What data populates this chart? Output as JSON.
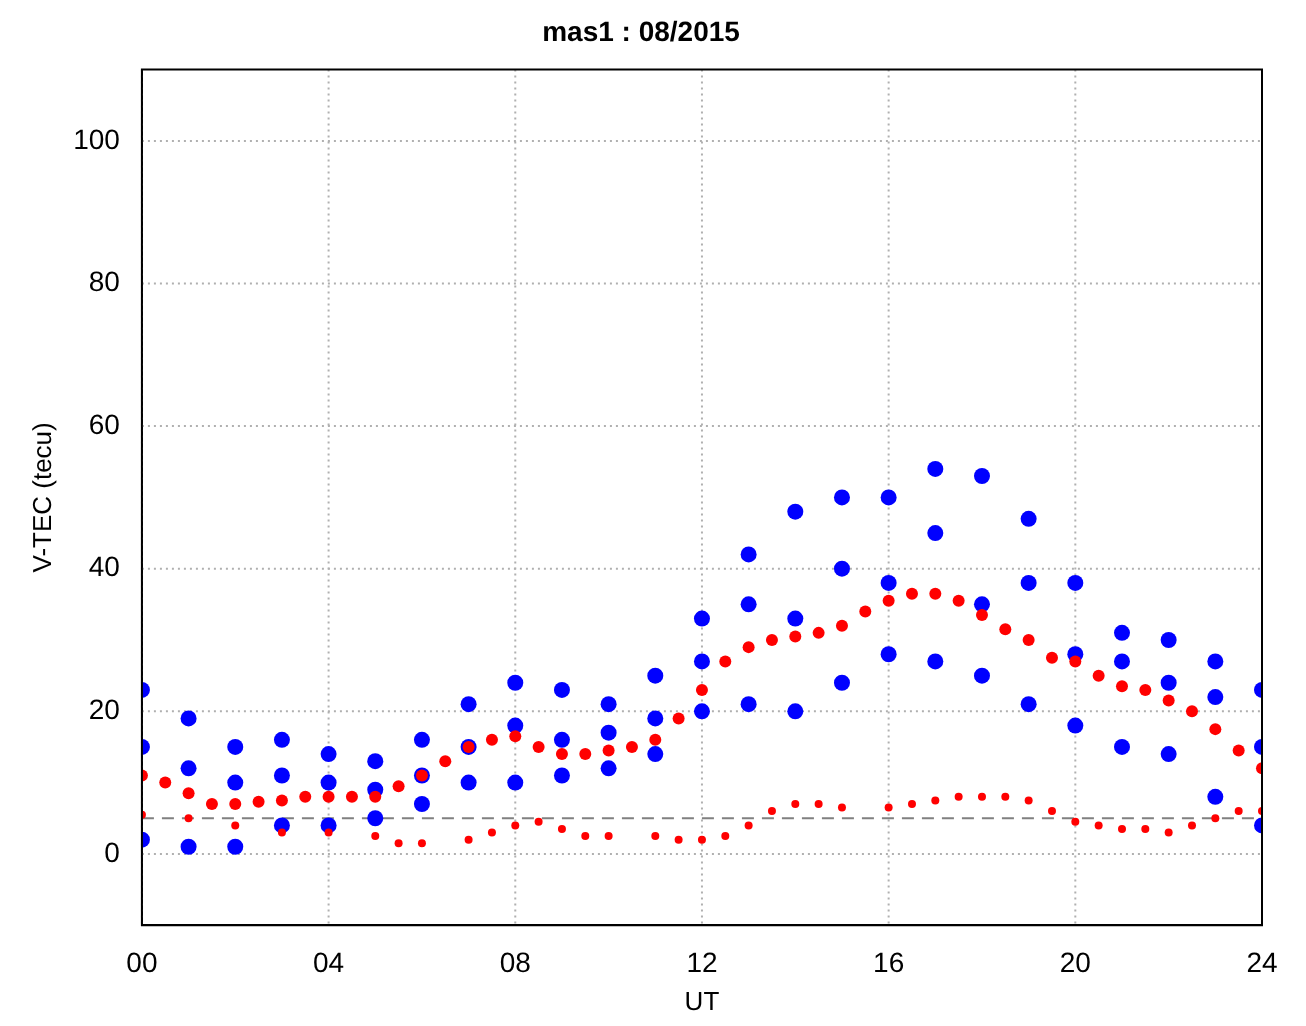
{
  "chart_data": {
    "type": "scatter",
    "title": "mas1 : 08/2015",
    "xlabel": "UT",
    "ylabel": "V-TEC (tecu)",
    "xlim": [
      0,
      24
    ],
    "xticks": [
      {
        "value": 0,
        "label": "00"
      },
      {
        "value": 4,
        "label": "04"
      },
      {
        "value": 8,
        "label": "08"
      },
      {
        "value": 12,
        "label": "12"
      },
      {
        "value": 16,
        "label": "16"
      },
      {
        "value": 20,
        "label": "20"
      },
      {
        "value": 24,
        "label": "24"
      }
    ],
    "ylim": [
      -10,
      110
    ],
    "yticks": [
      0,
      20,
      40,
      60,
      80,
      100
    ],
    "grid": true,
    "marker": "circle",
    "series": [
      {
        "color": "#0000ff",
        "x": [
          0,
          1,
          2,
          3,
          4,
          5,
          6,
          7,
          8,
          9,
          10,
          11,
          12,
          13,
          14,
          15,
          16,
          17,
          18,
          19,
          20,
          21,
          22,
          23,
          24,
          0,
          1,
          2,
          3,
          4,
          5,
          6,
          7,
          8,
          9,
          10,
          11,
          12,
          13,
          14,
          15,
          16,
          17,
          18,
          19,
          20,
          21,
          22,
          23,
          24,
          0,
          2,
          4,
          6,
          8,
          10,
          12,
          14,
          16,
          18,
          20,
          22,
          24,
          13,
          15,
          17,
          19,
          21,
          23,
          1,
          3,
          5,
          7,
          9,
          11
        ],
        "values": [
          23,
          19,
          15,
          16,
          14,
          13,
          16,
          21,
          24,
          23,
          21,
          25,
          33,
          42,
          48,
          50,
          50,
          54,
          53,
          47,
          38,
          31,
          30,
          27,
          23,
          2,
          1,
          1,
          4,
          4,
          5,
          7,
          10,
          10,
          11,
          12,
          14,
          20,
          21,
          20,
          24,
          28,
          27,
          25,
          21,
          18,
          15,
          14,
          8,
          4,
          15,
          10,
          10,
          11,
          18,
          17,
          27,
          33,
          38,
          35,
          28,
          24,
          15,
          35,
          40,
          45,
          38,
          27,
          22,
          12,
          11,
          9,
          15,
          16,
          19
        ]
      },
      {
        "color": "#ff0000",
        "x": [
          0,
          0.5,
          1,
          1.5,
          2,
          2.5,
          3,
          3.5,
          4,
          4.5,
          5,
          5.5,
          6,
          6.5,
          7,
          7.5,
          8,
          8.5,
          9,
          9.5,
          10,
          10.5,
          11,
          11.5,
          12,
          12.5,
          13,
          13.5,
          14,
          14.5,
          15,
          15.5,
          16,
          16.5,
          17,
          17.5,
          18,
          18.5,
          19,
          19.5,
          20,
          20.5,
          21,
          21.5,
          22,
          22.5,
          23,
          23.5,
          24
        ],
        "values": [
          11,
          10,
          8.5,
          7,
          7,
          7.3,
          7.5,
          8,
          8,
          8,
          8,
          9.5,
          11,
          13,
          15,
          16,
          16.5,
          15,
          14,
          14,
          14.5,
          15,
          16,
          19,
          23,
          27,
          29,
          30,
          30.5,
          31,
          32,
          34,
          35.5,
          36.5,
          36.5,
          35.5,
          33.5,
          31.5,
          30,
          27.5,
          27,
          25,
          23.5,
          23,
          21.5,
          20,
          17.5,
          14.5,
          12
        ]
      },
      {
        "color": "#ff0000",
        "x": [
          0,
          1,
          2,
          3,
          4,
          5,
          5.5,
          6,
          7,
          7.5,
          8,
          8.5,
          9,
          9.5,
          10,
          11,
          11.5,
          12,
          12.5,
          13,
          13.5,
          14,
          14.5,
          15,
          16,
          16.5,
          17,
          17.5,
          18,
          18.5,
          19,
          19.5,
          20,
          20.5,
          21,
          21.5,
          22,
          22.5,
          23,
          23.5,
          24
        ],
        "values": [
          5.5,
          5,
          4,
          3,
          3,
          2.5,
          1.5,
          1.5,
          2,
          3,
          4,
          4.5,
          3.5,
          2.5,
          2.5,
          2.5,
          2,
          2,
          2.5,
          4,
          6,
          7,
          7,
          6.5,
          6.5,
          7,
          7.5,
          8,
          8,
          8,
          7.5,
          6,
          4.5,
          4,
          3.5,
          3.5,
          3,
          4,
          5,
          6,
          6
        ]
      }
    ],
    "ref_lines": [
      {
        "axis": "y",
        "value": 5,
        "color": "#808080",
        "line_style": "dashed"
      }
    ]
  }
}
